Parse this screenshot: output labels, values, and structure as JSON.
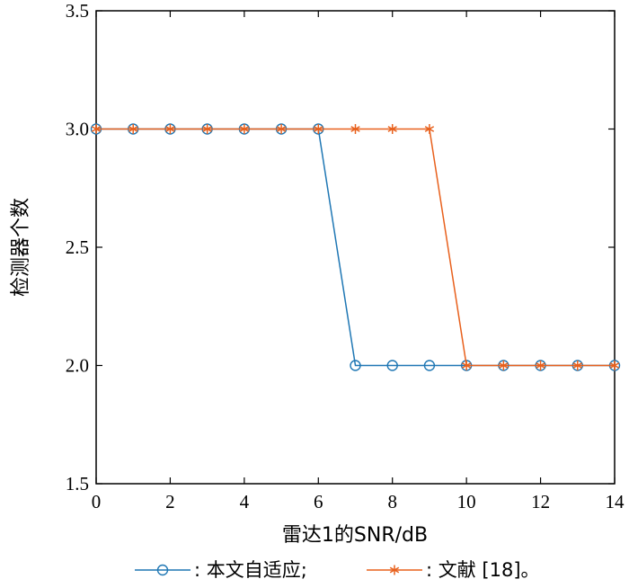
{
  "chart_data": {
    "type": "line",
    "xlabel": "雷达1的SNR/dB",
    "ylabel": "检测器个数",
    "xlim": [
      0,
      14
    ],
    "ylim": [
      1.5,
      3.5
    ],
    "x_ticks": [
      "0",
      "2",
      "4",
      "6",
      "8",
      "10",
      "12",
      "14"
    ],
    "y_ticks": [
      "1.5",
      "2.0",
      "2.5",
      "3.0",
      "3.5"
    ],
    "grid": false,
    "legend_position": "bottom",
    "series": [
      {
        "name": ": 本文自适应;",
        "color": "#1f77b4",
        "marker": "circle",
        "x": [
          0,
          1,
          2,
          3,
          4,
          5,
          6,
          7,
          8,
          9,
          10,
          11,
          12,
          13,
          14
        ],
        "values": [
          3,
          3,
          3,
          3,
          3,
          3,
          3,
          2,
          2,
          2,
          2,
          2,
          2,
          2,
          2
        ]
      },
      {
        "name": ": 文献 [18]。",
        "color": "#e8601c",
        "marker": "star",
        "x": [
          0,
          1,
          2,
          3,
          4,
          5,
          6,
          7,
          8,
          9,
          10,
          11,
          12,
          13,
          14
        ],
        "values": [
          3,
          3,
          3,
          3,
          3,
          3,
          3,
          3,
          3,
          3,
          2,
          2,
          2,
          2,
          2
        ]
      }
    ]
  }
}
